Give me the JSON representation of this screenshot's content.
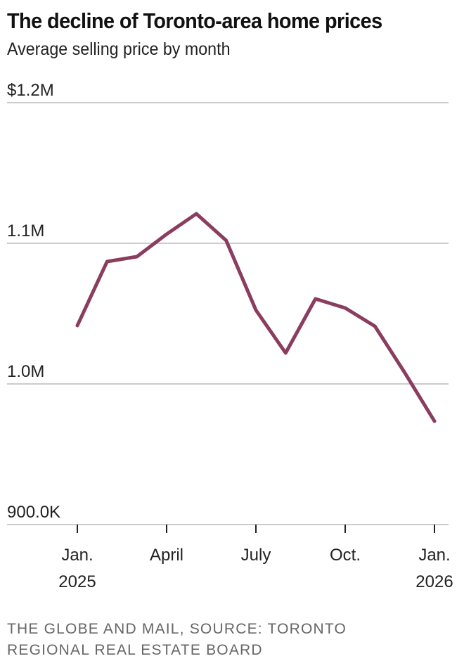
{
  "header": {
    "title": "The decline of Toronto-area home prices",
    "subtitle": "Average selling price by month"
  },
  "footer": {
    "source": "THE GLOBE AND MAIL, SOURCE: TORONTO REGIONAL REAL ESTATE BOARD"
  },
  "colors": {
    "line": "#8a3d5f",
    "grid": "#cccccc",
    "text": "#111111",
    "source_text": "#666666"
  },
  "chart_data": {
    "type": "line",
    "title": "The decline of Toronto-area home prices",
    "subtitle": "Average selling price by month",
    "xlabel": "",
    "ylabel": "",
    "x": [
      "Jan. 2025",
      "Feb. 2025",
      "Mar. 2025",
      "Apr. 2025",
      "May 2025",
      "Jun. 2025",
      "Jul. 2025",
      "Aug. 2025",
      "Sep. 2025",
      "Oct. 2025",
      "Nov. 2025",
      "Dec. 2025",
      "Jan. 2026"
    ],
    "series": [
      {
        "name": "Average selling price",
        "values": [
          1041500,
          1087000,
          1090500,
          1106500,
          1121000,
          1102000,
          1052500,
          1022000,
          1060500,
          1054000,
          1041000,
          1008000,
          973500
        ]
      }
    ],
    "ylim": [
      900000,
      1200000
    ],
    "y_ticks": [
      {
        "value": 1200000,
        "label": "$1.2M"
      },
      {
        "value": 1100000,
        "label": "1.1M"
      },
      {
        "value": 1000000,
        "label": "1.0M"
      },
      {
        "value": 900000,
        "label": "900.0K"
      }
    ],
    "x_ticks": [
      {
        "index": 0,
        "line1": "Jan.",
        "line2": "2025"
      },
      {
        "index": 3,
        "line1": "April",
        "line2": ""
      },
      {
        "index": 6,
        "line1": "July",
        "line2": ""
      },
      {
        "index": 9,
        "line1": "Oct.",
        "line2": ""
      },
      {
        "index": 12,
        "line1": "Jan.",
        "line2": "2026"
      }
    ],
    "grid": true,
    "legend": "none",
    "source": "THE GLOBE AND MAIL, SOURCE: TORONTO REGIONAL REAL ESTATE BOARD"
  }
}
